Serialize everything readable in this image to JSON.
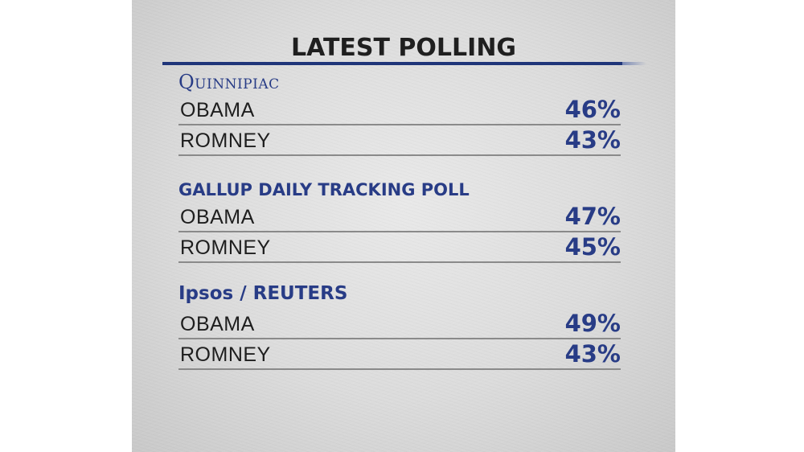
{
  "title": "LATEST POLLING",
  "polls": [
    {
      "source": "Quinnipiac",
      "rows": [
        {
          "name": "OBAMA",
          "value": "46%"
        },
        {
          "name": "ROMNEY",
          "value": "43%"
        }
      ]
    },
    {
      "source": "GALLUP DAILY TRACKING POLL",
      "rows": [
        {
          "name": "OBAMA",
          "value": "47%"
        },
        {
          "name": "ROMNEY",
          "value": "45%"
        }
      ]
    },
    {
      "source": "Ipsos / REUTERS",
      "rows": [
        {
          "name": "OBAMA",
          "value": "49%"
        },
        {
          "name": "ROMNEY",
          "value": "43%"
        }
      ]
    }
  ],
  "colors": {
    "accent": "#283c86",
    "rule": "#1f3579",
    "text": "#1e1e1e"
  }
}
